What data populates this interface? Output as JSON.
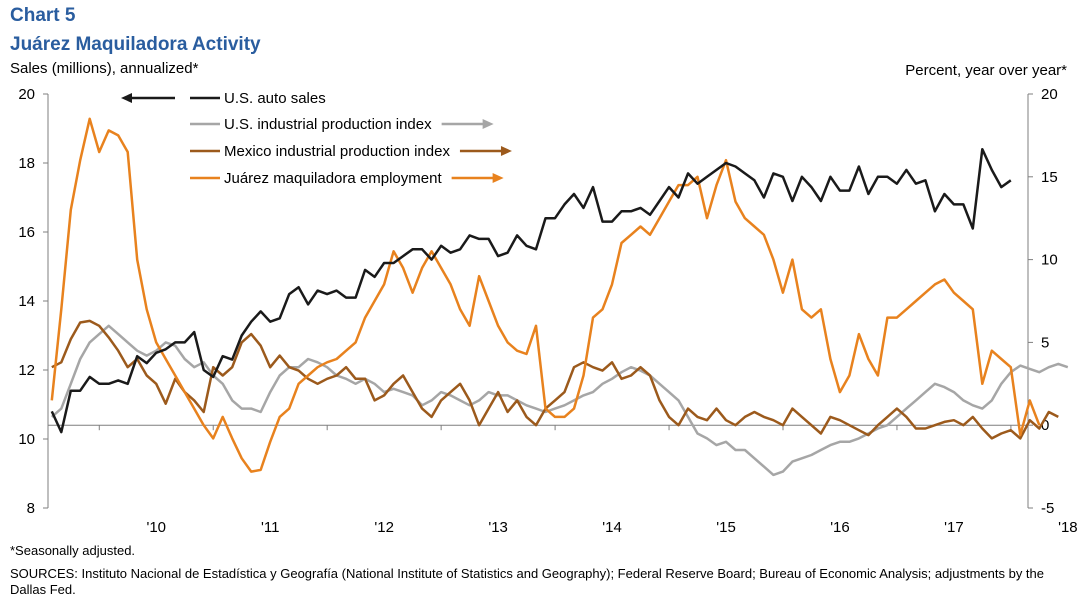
{
  "header": {
    "chart_number": "Chart 5",
    "title": "Juárez Maquiladora Activity"
  },
  "axes": {
    "left_title": "Sales (millions),  annualized*",
    "right_title": "Percent,  year over year*"
  },
  "footer": {
    "footnote": "*Seasonally adjusted.",
    "sources": "SOURCES:  Instituto Nacional de Estadística y Geografía (National Institute of Statistics and Geography); Federal Reserve Board; Bureau of Economic Analysis; adjustments by the Dallas Fed."
  },
  "colors": {
    "us_auto_sales": "#1a1a1a",
    "us_ip": "#a6a6a6",
    "mexico_ip": "#9c5a1c",
    "juarez_employment": "#e8821e"
  },
  "chart_data": {
    "type": "line",
    "title": "Juárez Maquiladora Activity",
    "x_ticks": [
      "'10",
      "'11",
      "'12",
      "'13",
      "'14",
      "'15",
      "'16",
      "'17",
      "'18"
    ],
    "x_range": [
      2009.55,
      2018.15
    ],
    "left_axis": {
      "label": "Sales (millions),  annualized*",
      "ylim": [
        8,
        20
      ],
      "ticks": [
        8,
        10,
        12,
        14,
        16,
        18,
        20
      ]
    },
    "right_axis": {
      "label": "Percent,  year over year*",
      "ylim": [
        -5,
        20
      ],
      "ticks": [
        -5,
        0,
        5,
        10,
        15,
        20
      ]
    },
    "zero_line": true,
    "legend": {
      "placement": "top-left"
    },
    "series": [
      {
        "name": "U.S. auto sales",
        "axis": "left",
        "arrow": "left",
        "x_start": 2009.583,
        "step": 0.08333,
        "values": [
          10.8,
          10.2,
          11.4,
          11.4,
          11.8,
          11.6,
          11.6,
          11.7,
          11.6,
          12.4,
          12.2,
          12.5,
          12.6,
          12.8,
          12.8,
          13.1,
          12.0,
          11.8,
          12.4,
          12.3,
          13.0,
          13.4,
          13.7,
          13.4,
          13.5,
          14.2,
          14.4,
          13.9,
          14.3,
          14.2,
          14.3,
          14.1,
          14.1,
          14.9,
          14.7,
          15.1,
          15.1,
          15.3,
          15.5,
          15.5,
          15.2,
          15.6,
          15.4,
          15.5,
          15.9,
          15.8,
          15.8,
          15.3,
          15.4,
          15.9,
          15.6,
          15.5,
          16.4,
          16.4,
          16.8,
          17.1,
          16.7,
          17.3,
          16.3,
          16.3,
          16.6,
          16.6,
          16.7,
          16.5,
          16.9,
          17.3,
          17.0,
          17.7,
          17.4,
          17.6,
          17.8,
          18.0,
          17.9,
          17.7,
          17.5,
          17.0,
          17.7,
          17.6,
          16.9,
          17.6,
          17.3,
          16.9,
          17.6,
          17.2,
          17.2,
          17.9,
          17.1,
          17.6,
          17.6,
          17.4,
          17.8,
          17.4,
          17.5,
          16.6,
          17.1,
          16.8,
          16.8,
          16.1,
          18.4,
          17.8,
          17.3,
          17.5
        ]
      },
      {
        "name": "U.S. industrial production index",
        "axis": "right",
        "arrow": "right",
        "x_start": 2009.583,
        "step": 0.08333,
        "values": [
          0.5,
          1.0,
          2.5,
          4.0,
          5.0,
          5.5,
          6.0,
          5.5,
          5.0,
          4.5,
          4.2,
          4.5,
          5.0,
          4.8,
          4.0,
          3.5,
          3.8,
          3.0,
          2.5,
          1.5,
          1.0,
          1.0,
          0.8,
          2.0,
          3.0,
          3.5,
          3.5,
          4.0,
          3.8,
          3.5,
          3.0,
          2.8,
          2.5,
          2.8,
          2.5,
          2.0,
          2.2,
          2.0,
          1.8,
          1.2,
          1.5,
          2.0,
          1.8,
          1.5,
          1.2,
          1.5,
          2.0,
          1.8,
          1.8,
          1.5,
          1.2,
          1.0,
          0.8,
          1.0,
          1.2,
          1.5,
          1.8,
          2.0,
          2.5,
          2.8,
          3.2,
          3.5,
          3.3,
          3.0,
          2.5,
          2.0,
          1.5,
          0.5,
          -0.5,
          -0.8,
          -1.2,
          -1.0,
          -1.5,
          -1.5,
          -2.0,
          -2.5,
          -3.0,
          -2.8,
          -2.2,
          -2.0,
          -1.8,
          -1.5,
          -1.2,
          -1.0,
          -1.0,
          -0.8,
          -0.5,
          -0.2,
          0.0,
          0.5,
          1.0,
          1.5,
          2.0,
          2.5,
          2.3,
          2.0,
          1.5,
          1.2,
          1.0,
          1.5,
          2.5,
          3.2,
          3.6,
          3.4,
          3.2,
          3.5,
          3.7,
          3.5
        ]
      },
      {
        "name": "Mexico industrial production index",
        "axis": "right",
        "arrow": "right",
        "x_start": 2009.583,
        "step": 0.08333,
        "values": [
          3.5,
          3.8,
          5.2,
          6.2,
          6.3,
          6.0,
          5.3,
          4.5,
          3.5,
          4.0,
          3.0,
          2.5,
          1.3,
          2.8,
          2.0,
          1.5,
          0.8,
          3.5,
          3.0,
          3.5,
          5.0,
          5.5,
          4.8,
          3.5,
          4.2,
          3.5,
          3.3,
          2.8,
          2.5,
          2.8,
          3.0,
          3.5,
          2.8,
          2.8,
          1.5,
          1.8,
          2.5,
          3.0,
          2.0,
          1.0,
          0.5,
          1.5,
          2.0,
          2.5,
          1.5,
          0.0,
          1.0,
          2.0,
          0.8,
          1.5,
          0.5,
          0.0,
          1.0,
          1.5,
          2.0,
          3.5,
          3.8,
          3.5,
          3.3,
          3.8,
          2.8,
          3.0,
          3.5,
          3.0,
          1.5,
          0.5,
          0.0,
          1.0,
          0.5,
          0.3,
          1.0,
          0.3,
          0.0,
          0.5,
          0.8,
          0.5,
          0.3,
          0.0,
          1.0,
          0.5,
          0.0,
          -0.5,
          0.5,
          0.3,
          0.0,
          -0.3,
          -0.6,
          0.0,
          0.5,
          1.0,
          0.5,
          -0.2,
          -0.2,
          0.0,
          0.2,
          0.3,
          0.0,
          0.5,
          -0.2,
          -0.8,
          -0.5,
          -0.3,
          -0.8,
          0.3,
          -0.2,
          0.8,
          0.5
        ]
      },
      {
        "name": "Juárez maquiladora employment",
        "axis": "right",
        "arrow": "right",
        "x_start": 2009.583,
        "step": 0.08333,
        "values": [
          1.5,
          7.0,
          13.0,
          16.0,
          18.5,
          16.5,
          17.8,
          17.5,
          16.5,
          10.0,
          7.0,
          5.0,
          4.0,
          3.0,
          2.0,
          1.0,
          0.0,
          -0.8,
          0.5,
          -0.8,
          -2.0,
          -2.8,
          -2.7,
          -1.0,
          0.5,
          1.0,
          2.5,
          3.0,
          3.5,
          3.8,
          4.0,
          4.5,
          5.0,
          6.5,
          7.5,
          8.5,
          10.5,
          9.5,
          8.0,
          9.5,
          10.5,
          9.5,
          8.5,
          7.0,
          6.0,
          9.0,
          7.5,
          6.0,
          5.0,
          4.5,
          4.3,
          6.0,
          1.0,
          0.5,
          0.5,
          1.0,
          3.0,
          6.5,
          7.0,
          8.5,
          11.0,
          11.5,
          12.0,
          11.5,
          12.5,
          13.5,
          14.5,
          14.5,
          15.0,
          12.5,
          14.5,
          16.0,
          13.5,
          12.5,
          12.0,
          11.5,
          10.0,
          8.0,
          10.0,
          7.0,
          6.5,
          7.0,
          4.0,
          2.0,
          3.0,
          5.5,
          4.0,
          3.0,
          6.5,
          6.5,
          7.0,
          7.5,
          8.0,
          8.5,
          8.8,
          8.0,
          7.5,
          7.0,
          2.5,
          4.5,
          4.0,
          3.5,
          -0.6,
          1.5,
          0.0
        ]
      }
    ]
  }
}
